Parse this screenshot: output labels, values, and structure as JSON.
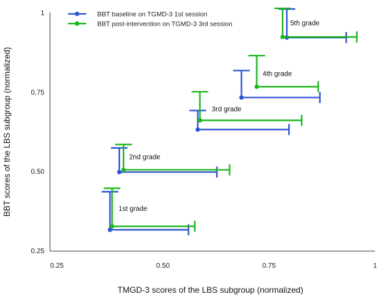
{
  "chart_data": {
    "type": "scatter",
    "xlabel": "TMGD-3 scores of the LBS subgroup (normalized)",
    "ylabel": "BBT scores of the LBS subgroup (normalized)",
    "xlim": [
      0.25,
      1
    ],
    "ylim": [
      0.25,
      1
    ],
    "x_ticks": [
      0.25,
      0.5,
      0.75,
      1
    ],
    "x_tick_labels": [
      "0.25",
      "0.50",
      "0.75",
      "1"
    ],
    "y_ticks": [
      0.25,
      0.5,
      0.75,
      1
    ],
    "y_tick_labels": [
      "0.25",
      "0.50",
      "0.75",
      "1"
    ],
    "grid": false,
    "legend_position": "top-left",
    "series": [
      {
        "name": "BBT baseline on TGMD-3 1st session",
        "color": "#2f55d4",
        "light_color": "#7f90e6",
        "points": [
          {
            "grade": "1st grade",
            "x": 0.375,
            "y": 0.315,
            "x_err": 0.185,
            "y_err": 0.12
          },
          {
            "grade": "2nd grade",
            "x": 0.397,
            "y": 0.497,
            "x_err": 0.23,
            "y_err": 0.076
          },
          {
            "grade": "3rd grade",
            "x": 0.582,
            "y": 0.631,
            "x_err": 0.215,
            "y_err": 0.06
          },
          {
            "grade": "4th grade",
            "x": 0.685,
            "y": 0.732,
            "x_err": 0.185,
            "y_err": 0.085
          },
          {
            "grade": "5th grade",
            "x": 0.792,
            "y": 0.921,
            "x_err": 0.14,
            "y_err": 0.09
          }
        ]
      },
      {
        "name": "BBT post-intervention on TGMD-3 3rd session",
        "color": "#19b719",
        "light_color": "#39e83f",
        "points": [
          {
            "grade": "1st grade",
            "x": 0.38,
            "y": 0.326,
            "x_err": 0.195,
            "y_err": 0.12
          },
          {
            "grade": "2nd grade",
            "x": 0.407,
            "y": 0.504,
            "x_err": 0.25,
            "y_err": 0.08
          },
          {
            "grade": "3rd grade",
            "x": 0.587,
            "y": 0.66,
            "x_err": 0.24,
            "y_err": 0.09
          },
          {
            "grade": "4th grade",
            "x": 0.721,
            "y": 0.766,
            "x_err": 0.145,
            "y_err": 0.098
          },
          {
            "grade": "5th grade",
            "x": 0.782,
            "y": 0.923,
            "x_err": 0.175,
            "y_err": 0.09
          }
        ]
      }
    ],
    "annotations": [
      {
        "text": "1st grade",
        "x": 0.395,
        "y": 0.375
      },
      {
        "text": "2nd grade",
        "x": 0.42,
        "y": 0.538
      },
      {
        "text": "3rd grade",
        "x": 0.615,
        "y": 0.688
      },
      {
        "text": "4th grade",
        "x": 0.735,
        "y": 0.8
      },
      {
        "text": "5th grade",
        "x": 0.8,
        "y": 0.96
      }
    ]
  }
}
